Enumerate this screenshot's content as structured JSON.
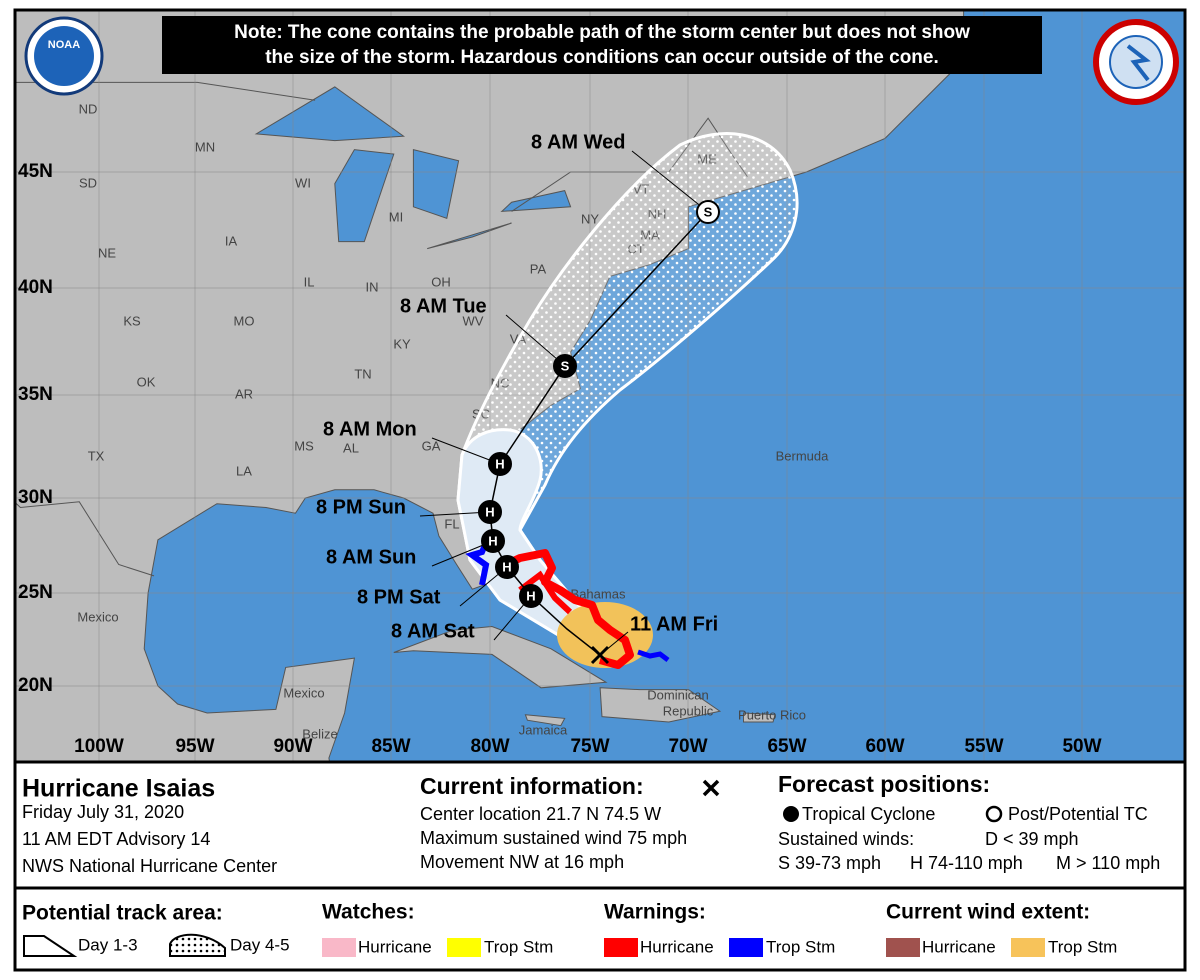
{
  "header": {
    "note": [
      "Note: The cone contains the probable path of the storm center but does not show",
      "the size of the storm. Hazardous conditions can occur outside of the cone."
    ],
    "noaa_logo": "NOAA"
  },
  "map": {
    "lat_labels": [
      "45N",
      "40N",
      "35N",
      "30N",
      "25N",
      "20N"
    ],
    "lon_labels": [
      "100W",
      "95W",
      "90W",
      "85W",
      "80W",
      "75W",
      "70W",
      "65W",
      "60W",
      "55W",
      "50W"
    ],
    "places": [
      "ND",
      "SD",
      "MN",
      "WI",
      "MI",
      "IA",
      "NE",
      "IL",
      "IN",
      "OH",
      "PA",
      "NY",
      "KS",
      "MO",
      "KY",
      "WV",
      "VA",
      "TN",
      "NC",
      "OK",
      "AR",
      "SC",
      "MS",
      "AL",
      "GA",
      "TX",
      "LA",
      "FL",
      "ME",
      "VT",
      "NH",
      "MA",
      "CT",
      "Bermuda",
      "Mexico",
      "Mexico",
      "Bahamas",
      "Jamaica",
      "Dominican",
      "Republic",
      "Puerto Rico",
      "Belize"
    ],
    "forecast": [
      {
        "time": "8 AM Wed",
        "marker": "S"
      },
      {
        "time": "8 AM Tue",
        "marker": "S"
      },
      {
        "time": "8 AM Mon",
        "marker": "H"
      },
      {
        "time": "8 PM Sun",
        "marker": "H"
      },
      {
        "time": "8 AM Sun",
        "marker": "H"
      },
      {
        "time": "8 PM Sat",
        "marker": "H"
      },
      {
        "time": "8 AM Sat",
        "marker": "H"
      }
    ],
    "current": {
      "time": "11 AM Fri"
    }
  },
  "info": {
    "storm": "Hurricane Isaias",
    "lines": [
      "Friday July 31, 2020",
      "11 AM EDT Advisory 14",
      "NWS National Hurricane Center"
    ]
  },
  "current_information": {
    "title": "Current information:",
    "lines": [
      "Center location 21.7 N 74.5 W",
      "Maximum sustained wind 75 mph",
      "Movement NW at 16 mph"
    ]
  },
  "forecast_positions": {
    "title": "Forecast positions:",
    "tropical": "Tropical Cyclone",
    "post": "Post/Potential TC",
    "sustained": "Sustained winds:",
    "d": "D < 39 mph",
    "s": "S 39-73 mph",
    "h": "H 74-110 mph",
    "m": "M > 110 mph"
  },
  "legend": {
    "track": {
      "title": "Potential track area:",
      "day13": "Day 1-3",
      "day45": "Day 4-5"
    },
    "watches": {
      "title": "Watches:",
      "hurricane": "Hurricane",
      "trop": "Trop Stm"
    },
    "warnings": {
      "title": "Warnings:",
      "hurricane": "Hurricane",
      "trop": "Trop Stm"
    },
    "wind": {
      "title": "Current wind extent:",
      "hurricane": "Hurricane",
      "trop": "Trop Stm"
    }
  }
}
